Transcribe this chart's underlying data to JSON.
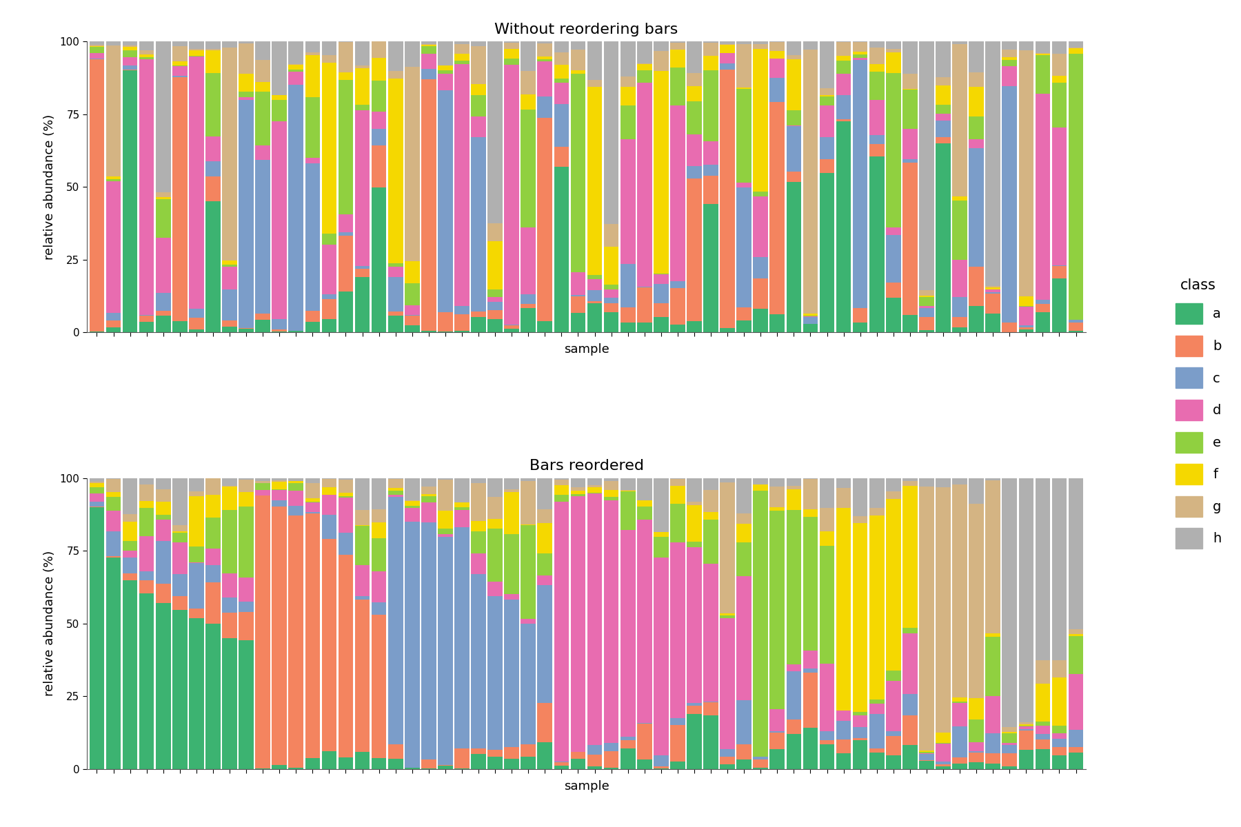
{
  "title1": "Without reordering bars",
  "title2": "Bars reordered",
  "xlabel": "sample",
  "ylabel": "relative abundance (%)",
  "n_samples": 60,
  "classes": [
    "a",
    "b",
    "c",
    "d",
    "e",
    "f",
    "g",
    "h"
  ],
  "colors": {
    "a": "#3cb371",
    "b": "#f4845f",
    "c": "#7b9dc9",
    "d": "#e86cb0",
    "e": "#90d040",
    "f": "#f5d800",
    "g": "#d4b483",
    "h": "#b0b0b0"
  },
  "seed": 7,
  "background_color": "#ffffff",
  "title_fontsize": 16,
  "label_fontsize": 13,
  "tick_fontsize": 11,
  "n_dominant_per_group": [
    10,
    8,
    10,
    12,
    5,
    5,
    5,
    5
  ]
}
